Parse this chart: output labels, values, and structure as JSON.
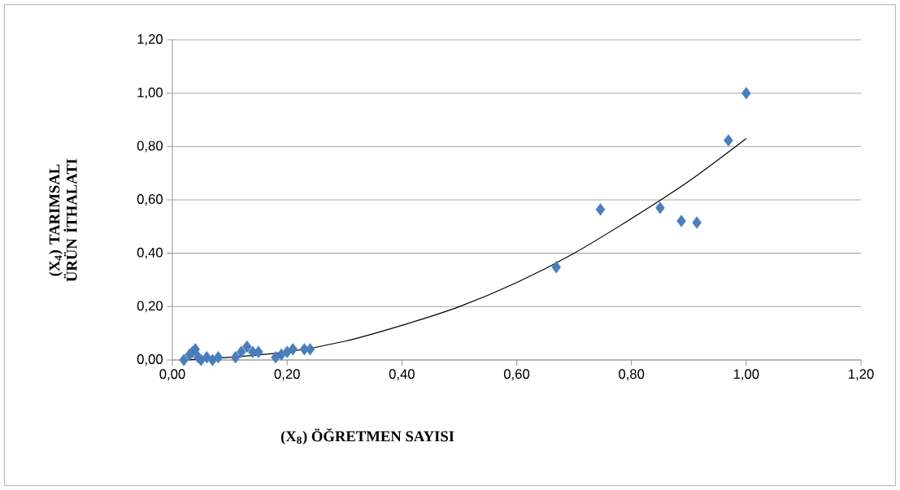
{
  "chart_data": {
    "type": "scatter",
    "xlabel": "(X$_{8}$) ÖĞRETMEN SAYISI",
    "ylabel": "(X$_{4}$) TARIMSAL ÜRÜN İTHALATI",
    "series": [
      {
        "color": "#4a7ebb",
        "marker": "diamond",
        "x": [
          0.02,
          0.03,
          0.035,
          0.04,
          0.045,
          0.05,
          0.06,
          0.07,
          0.08,
          0.11,
          0.12,
          0.13,
          0.14,
          0.15,
          0.18,
          0.19,
          0.2,
          0.21,
          0.23,
          0.24,
          0.669,
          0.746,
          0.85,
          0.887,
          0.914,
          0.969,
          1.0
        ],
        "values": [
          0.0,
          0.02,
          0.03,
          0.04,
          0.01,
          0.0,
          0.01,
          0.0,
          0.01,
          0.01,
          0.03,
          0.05,
          0.03,
          0.03,
          0.01,
          0.02,
          0.03,
          0.04,
          0.04,
          0.04,
          0.348,
          0.564,
          0.57,
          0.521,
          0.515,
          0.823,
          1.0
        ]
      },
      {
        "type": "line",
        "color": "#000000",
        "marker": "none",
        "x": [
          0.02,
          0.1,
          0.2,
          0.3,
          0.4,
          0.5,
          0.6,
          0.7,
          0.8,
          0.9,
          1.0
        ],
        "values": [
          0.0,
          0.01,
          0.03,
          0.07,
          0.13,
          0.2,
          0.29,
          0.4,
          0.53,
          0.67,
          0.83
        ]
      }
    ],
    "xlim": [
      0,
      1.2
    ],
    "ylim": [
      0,
      1.2
    ],
    "xticks": [
      {
        "value": 0,
        "label": "0,00"
      },
      {
        "value": 0.2,
        "label": "0,20"
      },
      {
        "value": 0.4,
        "label": "0,40"
      },
      {
        "value": 0.6,
        "label": "0,60"
      },
      {
        "value": 0.8,
        "label": "0,80"
      },
      {
        "value": 1.0,
        "label": "1,00"
      },
      {
        "value": 1.2,
        "label": "1,20"
      }
    ],
    "yticks": [
      {
        "value": 0,
        "label": "0,00"
      },
      {
        "value": 0.2,
        "label": "0,20"
      },
      {
        "value": 0.4,
        "label": "0,40"
      },
      {
        "value": 0.6,
        "label": "0,60"
      },
      {
        "value": 0.8,
        "label": "0,80"
      },
      {
        "value": 1.0,
        "label": "1,00"
      },
      {
        "value": 1.2,
        "label": "1,20"
      }
    ],
    "grid": "y"
  }
}
